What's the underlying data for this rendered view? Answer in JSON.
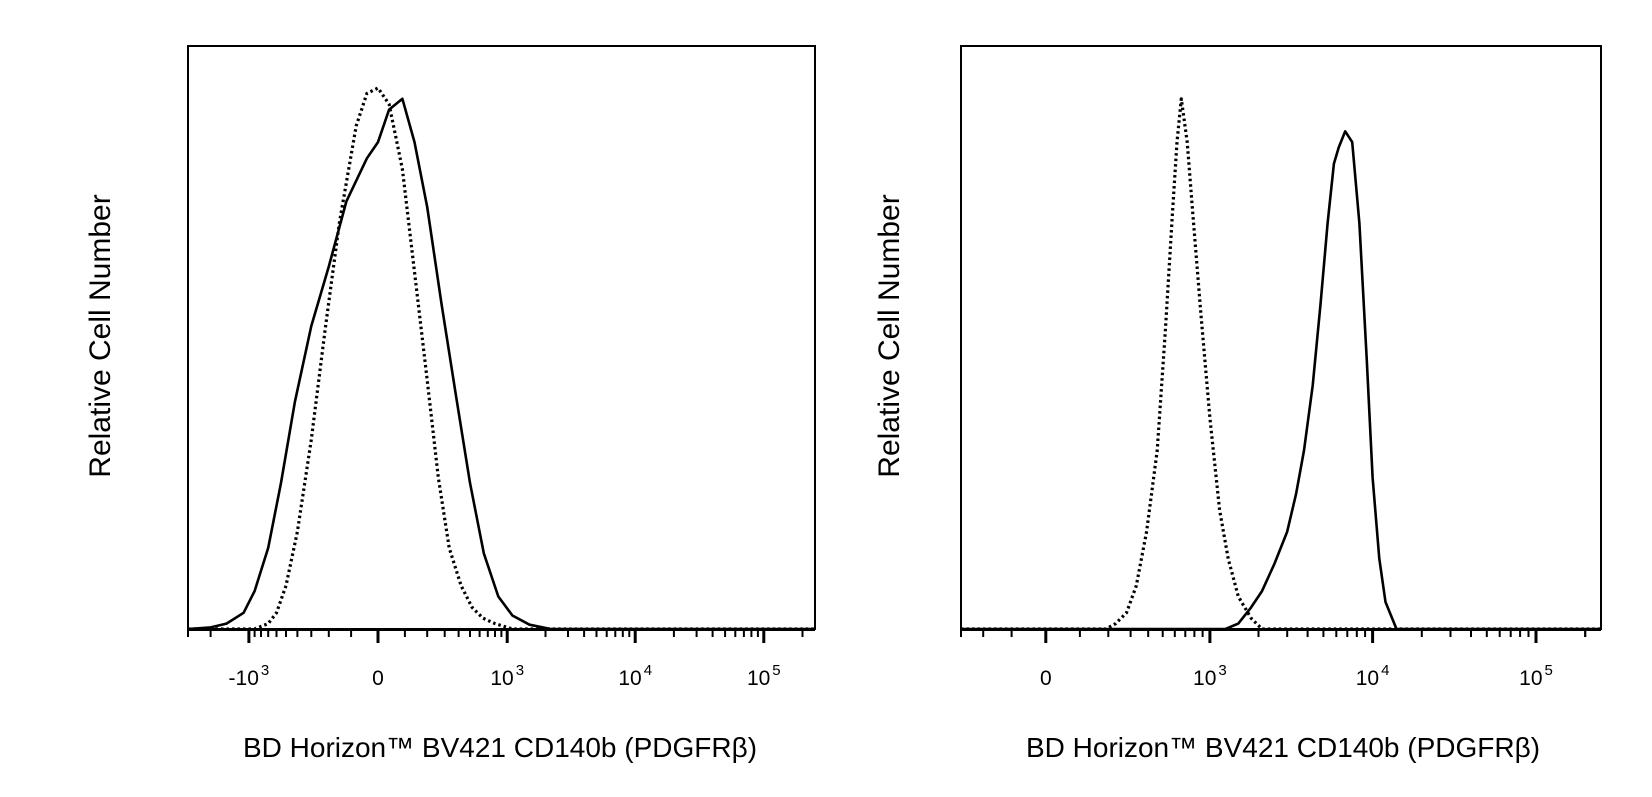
{
  "chart_data": [
    {
      "type": "line",
      "title": "",
      "xlabel": "BD Horizon™ BV421 CD140b (PDGFRβ)",
      "ylabel": "Relative Cell Number",
      "xscale": "biexponential",
      "xlim": [
        -3000,
        250000
      ],
      "ylim": [
        0,
        1
      ],
      "grid": false,
      "legend": "none",
      "tick_labels": [
        {
          "value": -1000,
          "base": "-10",
          "exp": "3"
        },
        {
          "value": 0,
          "base": "0",
          "exp": ""
        },
        {
          "value": 1000,
          "base": "10",
          "exp": "3"
        },
        {
          "value": 10000,
          "base": "10",
          "exp": "4"
        },
        {
          "value": 100000,
          "base": "10",
          "exp": "5"
        }
      ],
      "series": [
        {
          "style": "dotted",
          "x": [
            -3000,
            -900,
            -700,
            -600,
            -500,
            -400,
            -300,
            -220,
            -150,
            -80,
            -40,
            0,
            40,
            90,
            140,
            200,
            260,
            330,
            420,
            520,
            640,
            800,
            1100,
            2000,
            250000
          ],
          "y": [
            0,
            0,
            0.01,
            0.03,
            0.08,
            0.18,
            0.35,
            0.55,
            0.75,
            0.93,
            0.99,
            1.0,
            0.97,
            0.85,
            0.66,
            0.46,
            0.28,
            0.15,
            0.08,
            0.04,
            0.02,
            0.01,
            0,
            0,
            0
          ]
        },
        {
          "style": "solid",
          "x": [
            -3000,
            -2000,
            -1500,
            -1100,
            -900,
            -700,
            -550,
            -420,
            -300,
            -200,
            -120,
            -40,
            0,
            40,
            90,
            140,
            200,
            280,
            380,
            500,
            650,
            850,
            1100,
            1500,
            2200,
            250000
          ],
          "y": [
            0,
            0.003,
            0.01,
            0.03,
            0.07,
            0.15,
            0.27,
            0.42,
            0.56,
            0.67,
            0.79,
            0.87,
            0.9,
            0.96,
            0.98,
            0.9,
            0.78,
            0.6,
            0.43,
            0.27,
            0.14,
            0.06,
            0.025,
            0.008,
            0,
            0
          ]
        }
      ]
    },
    {
      "type": "line",
      "title": "",
      "xlabel": "BD Horizon™ BV421 CD140b (PDGFRβ)",
      "ylabel": "Relative Cell Number",
      "xscale": "biexponential",
      "xlim": [
        -300,
        250000
      ],
      "ylim": [
        0,
        1
      ],
      "grid": false,
      "legend": "none",
      "tick_labels": [
        {
          "value": 0,
          "base": "0",
          "exp": ""
        },
        {
          "value": 1000,
          "base": "10",
          "exp": "3"
        },
        {
          "value": 10000,
          "base": "10",
          "exp": "4"
        },
        {
          "value": 100000,
          "base": "10",
          "exp": "5"
        }
      ],
      "series": [
        {
          "style": "dotted",
          "x": [
            -300,
            190,
            230,
            280,
            330,
            390,
            460,
            520,
            580,
            620,
            660,
            720,
            780,
            880,
            1000,
            1150,
            1300,
            1500,
            1800,
            2100,
            250000
          ],
          "y": [
            0,
            0,
            0.01,
            0.03,
            0.08,
            0.18,
            0.33,
            0.55,
            0.77,
            0.9,
            0.98,
            0.9,
            0.77,
            0.58,
            0.39,
            0.22,
            0.13,
            0.06,
            0.02,
            0,
            0
          ]
        },
        {
          "style": "solid",
          "x": [
            -300,
            1250,
            1500,
            1800,
            2100,
            2500,
            3000,
            3400,
            3800,
            4300,
            4800,
            5300,
            5800,
            6200,
            6800,
            7500,
            8300,
            9200,
            10000,
            11000,
            12000,
            14000,
            250000
          ],
          "y": [
            0,
            0,
            0.01,
            0.04,
            0.07,
            0.12,
            0.18,
            0.25,
            0.33,
            0.45,
            0.6,
            0.75,
            0.86,
            0.89,
            0.92,
            0.9,
            0.75,
            0.5,
            0.28,
            0.13,
            0.05,
            0,
            0
          ]
        }
      ]
    }
  ]
}
